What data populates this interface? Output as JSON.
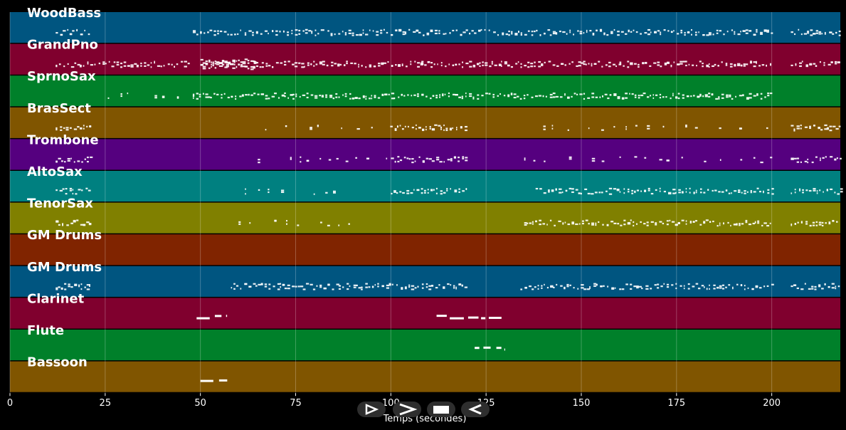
{
  "chart_data": {
    "type": "piano-roll",
    "xlabel": "Temps (secondes)",
    "xlim": [
      0,
      218
    ],
    "x_ticks": [
      0,
      25,
      50,
      75,
      100,
      125,
      150,
      175,
      200
    ],
    "grid": true,
    "tracks": [
      {
        "name": "WoodBass",
        "color": "#005580",
        "segments": [
          [
            12,
            21,
            "dense"
          ],
          [
            48,
            200,
            "dense"
          ],
          [
            205,
            218,
            "dense"
          ]
        ]
      },
      {
        "name": "GrandPno",
        "color": "#80002e",
        "segments": [
          [
            12,
            47,
            "dense"
          ],
          [
            50,
            64,
            "block"
          ],
          [
            64,
            108,
            "dense"
          ],
          [
            108,
            160,
            "dense"
          ],
          [
            160,
            200,
            "dense"
          ],
          [
            205,
            218,
            "dense"
          ]
        ]
      },
      {
        "name": "SprnoSax",
        "color": "#00802a",
        "segments": [
          [
            24,
            48,
            "sparse"
          ],
          [
            48,
            200,
            "dense"
          ]
        ]
      },
      {
        "name": "BrasSect",
        "color": "#805500",
        "segments": [
          [
            12,
            21,
            "dense"
          ],
          [
            67,
            100,
            "sparse"
          ],
          [
            101,
            120,
            "dense"
          ],
          [
            140,
            200,
            "sparse"
          ],
          [
            205,
            218,
            "dense"
          ]
        ]
      },
      {
        "name": "Trombone",
        "color": "#55007f",
        "segments": [
          [
            12,
            21,
            "dense"
          ],
          [
            60,
            100,
            "sparse"
          ],
          [
            100,
            120,
            "dense"
          ],
          [
            135,
            200,
            "sparse"
          ],
          [
            205,
            218,
            "dense"
          ]
        ]
      },
      {
        "name": "AltoSax",
        "color": "#008080",
        "segments": [
          [
            12,
            21,
            "dense"
          ],
          [
            60,
            90,
            "sparse"
          ],
          [
            100,
            120,
            "dense"
          ],
          [
            138,
            200,
            "dense"
          ],
          [
            205,
            218,
            "dense"
          ]
        ]
      },
      {
        "name": "TenorSax",
        "color": "#808000",
        "segments": [
          [
            12,
            21,
            "dense"
          ],
          [
            60,
            90,
            "sparse"
          ],
          [
            135,
            200,
            "dense"
          ],
          [
            205,
            218,
            "dense"
          ]
        ]
      },
      {
        "name": "GM Drums",
        "color": "#802400",
        "segments": [
          [
            0,
            1,
            "sparse"
          ]
        ]
      },
      {
        "name": "GM Drums",
        "color": "#005580",
        "segments": [
          [
            12,
            21,
            "dense"
          ],
          [
            58,
            120,
            "dense"
          ],
          [
            134,
            200,
            "dense"
          ],
          [
            205,
            218,
            "dense"
          ]
        ]
      },
      {
        "name": "Clarinet",
        "color": "#80002e",
        "segments": [
          [
            49,
            57,
            "long"
          ],
          [
            112,
            130,
            "long"
          ],
          [
            138,
            140,
            "sparse"
          ]
        ]
      },
      {
        "name": "Flute",
        "color": "#00802a",
        "segments": [
          [
            122,
            130,
            "long"
          ]
        ]
      },
      {
        "name": "Bassoon",
        "color": "#805500",
        "segments": [
          [
            50,
            58,
            "long"
          ]
        ]
      }
    ]
  },
  "controls": [
    {
      "name": "play-forward-button",
      "icon": "play-icon"
    },
    {
      "name": "fast-forward-button",
      "icon": "chevron-right-icon"
    },
    {
      "name": "stop-button",
      "icon": "stop-icon"
    },
    {
      "name": "rewind-button",
      "icon": "rewind-icon"
    }
  ]
}
